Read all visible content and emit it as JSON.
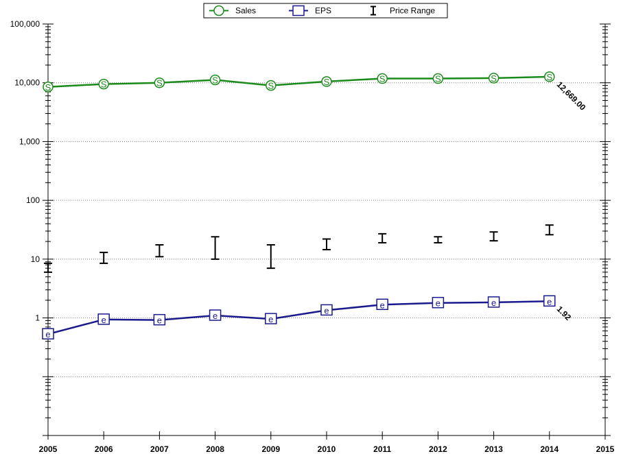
{
  "chart_data": {
    "type": "line",
    "title": "",
    "xlabel": "",
    "ylabel": "",
    "y_scale": "log",
    "ylim": [
      0.01,
      100000
    ],
    "xlim": [
      2005,
      2015
    ],
    "grid": "horizontal dotted",
    "legend_position": "top",
    "x_ticks": [
      "2005",
      "2006",
      "2007",
      "2008",
      "2009",
      "2010",
      "2011",
      "2012",
      "2013",
      "2014",
      "2015"
    ],
    "y_ticks": [
      {
        "value": 100000,
        "label": "100,000"
      },
      {
        "value": 10000,
        "label": "10,000"
      },
      {
        "value": 1000,
        "label": "1,000"
      },
      {
        "value": 100,
        "label": "100"
      },
      {
        "value": 10,
        "label": "10"
      },
      {
        "value": 1,
        "label": "1"
      }
    ],
    "legend": [
      {
        "name": "Sales",
        "marker": "S",
        "shape": "circle",
        "color": "#1a8a1a"
      },
      {
        "name": "EPS",
        "marker": "e",
        "shape": "square",
        "color": "#1a1a8c"
      },
      {
        "name": "Price Range",
        "marker": "I",
        "shape": "errorbar",
        "color": "#000000"
      }
    ],
    "series": [
      {
        "name": "Sales",
        "color": "#1a8a1a",
        "marker_letter": "S",
        "x": [
          2005,
          2006,
          2007,
          2008,
          2009,
          2010,
          2011,
          2012,
          2013,
          2014
        ],
        "values": [
          8500,
          9500,
          10000,
          11200,
          9000,
          10500,
          11800,
          11800,
          12000,
          12669
        ],
        "end_label": "12,669.00"
      },
      {
        "name": "EPS",
        "color": "#1a1a8c",
        "marker_letter": "e",
        "x": [
          2005,
          2006,
          2007,
          2008,
          2009,
          2010,
          2011,
          2012,
          2013,
          2014
        ],
        "values": [
          0.53,
          0.94,
          0.92,
          1.1,
          0.96,
          1.35,
          1.68,
          1.8,
          1.84,
          1.92
        ],
        "end_label": "1.92"
      }
    ],
    "price_range": {
      "name": "Price Range",
      "color": "#000000",
      "x": [
        2005,
        2006,
        2007,
        2008,
        2009,
        2010,
        2011,
        2012,
        2013,
        2014
      ],
      "low": [
        6,
        8.5,
        11,
        10,
        7,
        14.5,
        19,
        19,
        20.5,
        26
      ],
      "high": [
        8.5,
        13,
        17.5,
        24,
        17.5,
        22,
        27,
        24,
        29,
        38
      ]
    }
  }
}
